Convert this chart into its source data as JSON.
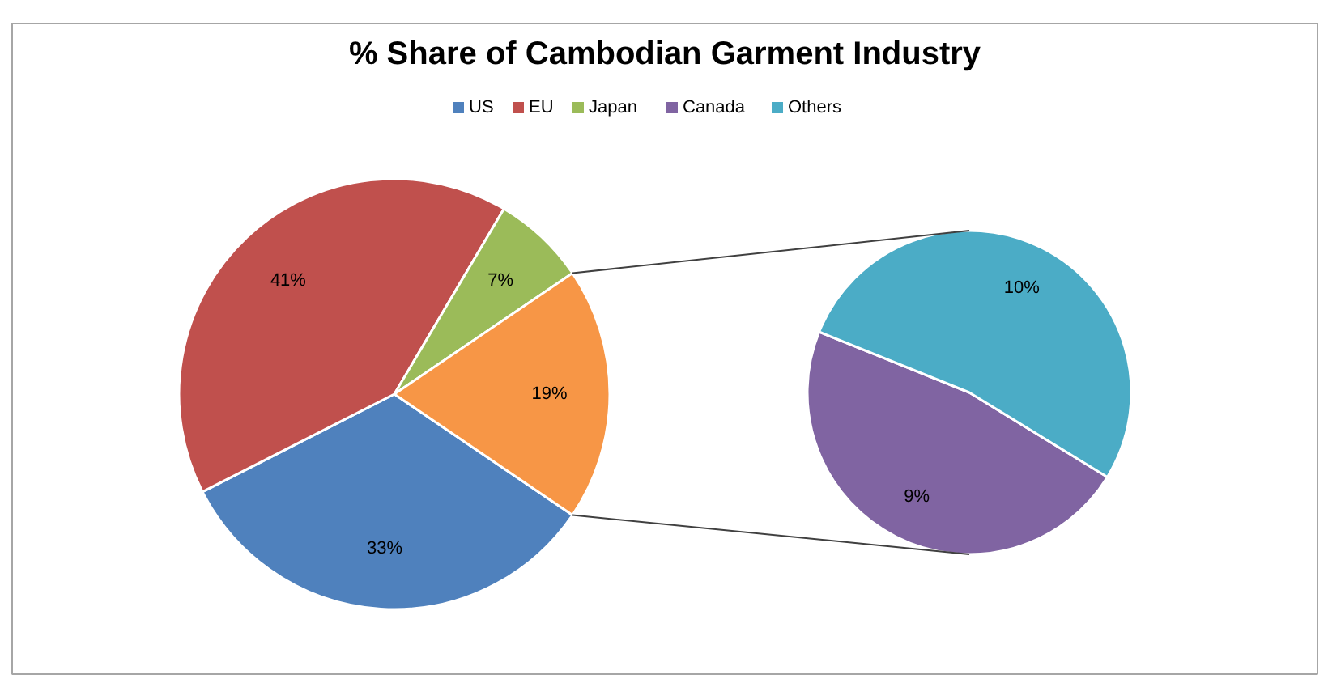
{
  "chart_data": [
    {
      "type": "pie",
      "title": "% Share of Cambodian Garment Industry",
      "categories": [
        "US",
        "EU",
        "Japan",
        null
      ],
      "values": [
        33,
        41,
        7,
        19
      ],
      "value_labels": [
        "33%",
        "41%",
        "7%",
        "19%"
      ],
      "colors": [
        "#4f81bd",
        "#c0504d",
        "#9bbb59",
        "#f79646"
      ],
      "legend": "top"
    },
    {
      "type": "pie",
      "categories": [
        "Canada",
        "Others"
      ],
      "values": [
        9,
        10
      ],
      "value_labels": [
        "9%",
        "10%"
      ],
      "colors": [
        "#8064a2",
        "#4bacc6"
      ],
      "legend": "top"
    }
  ]
}
